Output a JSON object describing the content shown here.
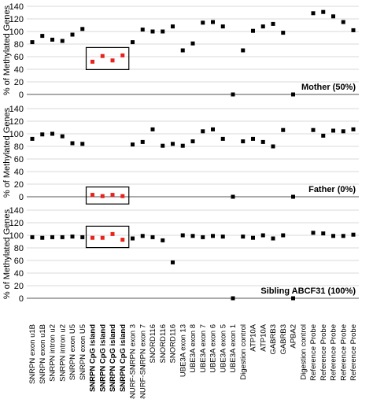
{
  "chart_data": {
    "type": "scatter",
    "ylabel": "% of Methylated Genes",
    "ylim": [
      0,
      140
    ],
    "yticks": [
      0,
      20,
      40,
      60,
      80,
      100,
      120,
      140
    ],
    "categories": [
      "SNRPN exon u1B",
      "SNRPN exon u1B",
      "SNRPN intron u2",
      "SNRPN intron u2",
      "SNRPN exon U5",
      "SNRPN exon U5",
      "SNRPN CpG island",
      "SNRPN CpG island",
      "SNRPN CpG island",
      "SNRPN CpG island",
      "SNURF-SNRPN exon 3",
      "SNURF-SNRPN exon 7",
      "SNORD116",
      "SNORD116",
      "SNORD116",
      "UBE3A exon 13",
      "UBE3A exon 8",
      "UBE3A exon 7",
      "UBE3A exon 6",
      "UBE3A exon 5",
      "UBE3A exon 1",
      "Digestion control",
      "ATP10A",
      "ATP10A",
      "GABRB3",
      "GABRB3",
      "APBA2",
      "Digestion control",
      "Reference Probe",
      "Reference Probe",
      "Reference Probe",
      "Reference Probe",
      "Reference Probe"
    ],
    "bold_categories": [
      6,
      7,
      8,
      9
    ],
    "highlight_color": "#e8231c",
    "normal_color": "#000000",
    "panels": [
      {
        "title": "Mother (50%)",
        "values": [
          83,
          93,
          87,
          85,
          95,
          104,
          52,
          61,
          54,
          62,
          83,
          103,
          100,
          100,
          108,
          70,
          81,
          114,
          115,
          108,
          0,
          70,
          101,
          108,
          112,
          98,
          0,
          129,
          131,
          124,
          115,
          102
        ]
      },
      {
        "title": "Father (0%)",
        "values": [
          92,
          99,
          100,
          96,
          85,
          84,
          3,
          1,
          3,
          1,
          83,
          87,
          107,
          81,
          84,
          81,
          88,
          104,
          107,
          92,
          0,
          88,
          92,
          87,
          80,
          106,
          0,
          106,
          97,
          105,
          104,
          107
        ]
      },
      {
        "title": "Sibling ABCF31 (100%)",
        "values": [
          97,
          96,
          97,
          97,
          98,
          97,
          96,
          96,
          102,
          93,
          95,
          99,
          97,
          92,
          57,
          100,
          99,
          97,
          99,
          98,
          0,
          98,
          96,
          100,
          95,
          100,
          0,
          104,
          103,
          99,
          99,
          101
        ]
      }
    ],
    "highlight_box": {
      "from_index": 6,
      "to_index": 9
    },
    "value_categories_map": [
      0,
      1,
      2,
      3,
      4,
      5,
      6,
      7,
      8,
      9,
      10,
      11,
      12,
      13,
      14,
      15,
      16,
      17,
      18,
      19,
      20,
      21,
      22,
      23,
      24,
      25,
      26,
      28,
      29,
      30,
      31,
      32
    ]
  }
}
